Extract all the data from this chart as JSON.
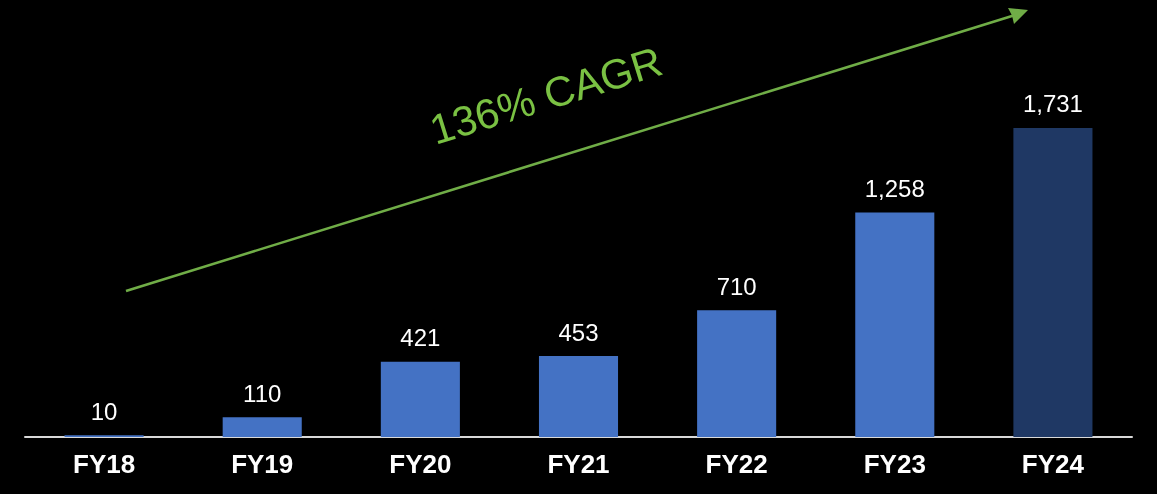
{
  "chart_data": {
    "type": "bar",
    "categories": [
      "FY18",
      "FY19",
      "FY20",
      "FY21",
      "FY22",
      "FY23",
      "FY24"
    ],
    "values": [
      10,
      110,
      421,
      453,
      710,
      1258,
      1731
    ],
    "value_labels": [
      "10",
      "110",
      "421",
      "453",
      "710",
      "1,258",
      "1,731"
    ],
    "colors": [
      "#4472c4",
      "#4472c4",
      "#4472c4",
      "#4472c4",
      "#4472c4",
      "#4472c4",
      "#1f3864"
    ],
    "annotations": [
      "136% CAGR"
    ]
  }
}
